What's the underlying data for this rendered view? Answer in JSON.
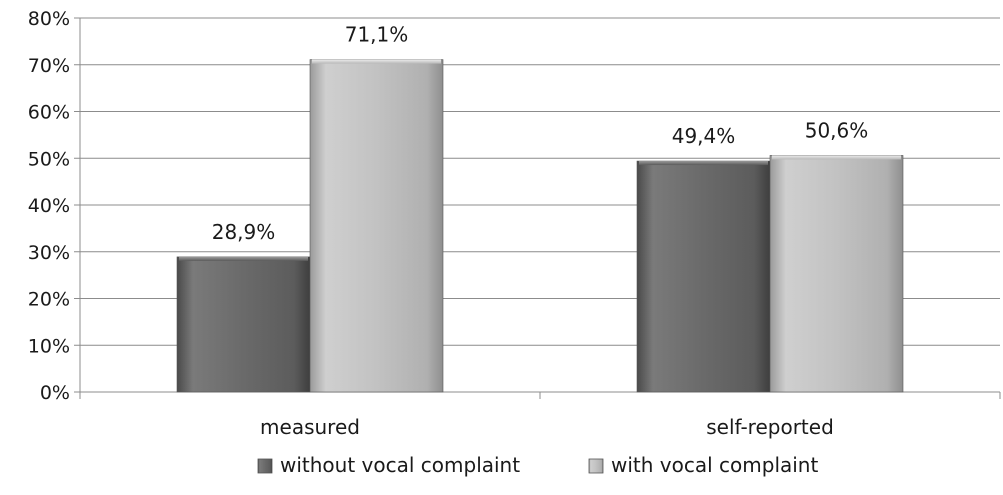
{
  "chart_data": {
    "type": "bar",
    "title": "",
    "xlabel": "",
    "ylabel": "",
    "categories": [
      "measured",
      "self-reported"
    ],
    "series": [
      {
        "name": "without vocal complaint",
        "values": [
          28.9,
          49.4
        ],
        "labels": [
          "28,9%",
          "49,4%"
        ],
        "color": "#6e6e6e"
      },
      {
        "name": "with vocal complaint",
        "values": [
          71.1,
          50.6
        ],
        "labels": [
          "71,1%",
          "50,6%"
        ],
        "color": "#bdbdbd"
      }
    ],
    "ylim": [
      0,
      80
    ],
    "yticks": [
      0,
      10,
      20,
      30,
      40,
      50,
      60,
      70,
      80
    ],
    "ytick_labels": [
      "0%",
      "10%",
      "20%",
      "30%",
      "40%",
      "50%",
      "60%",
      "70%",
      "80%"
    ],
    "grid": true,
    "legend_position": "bottom"
  }
}
